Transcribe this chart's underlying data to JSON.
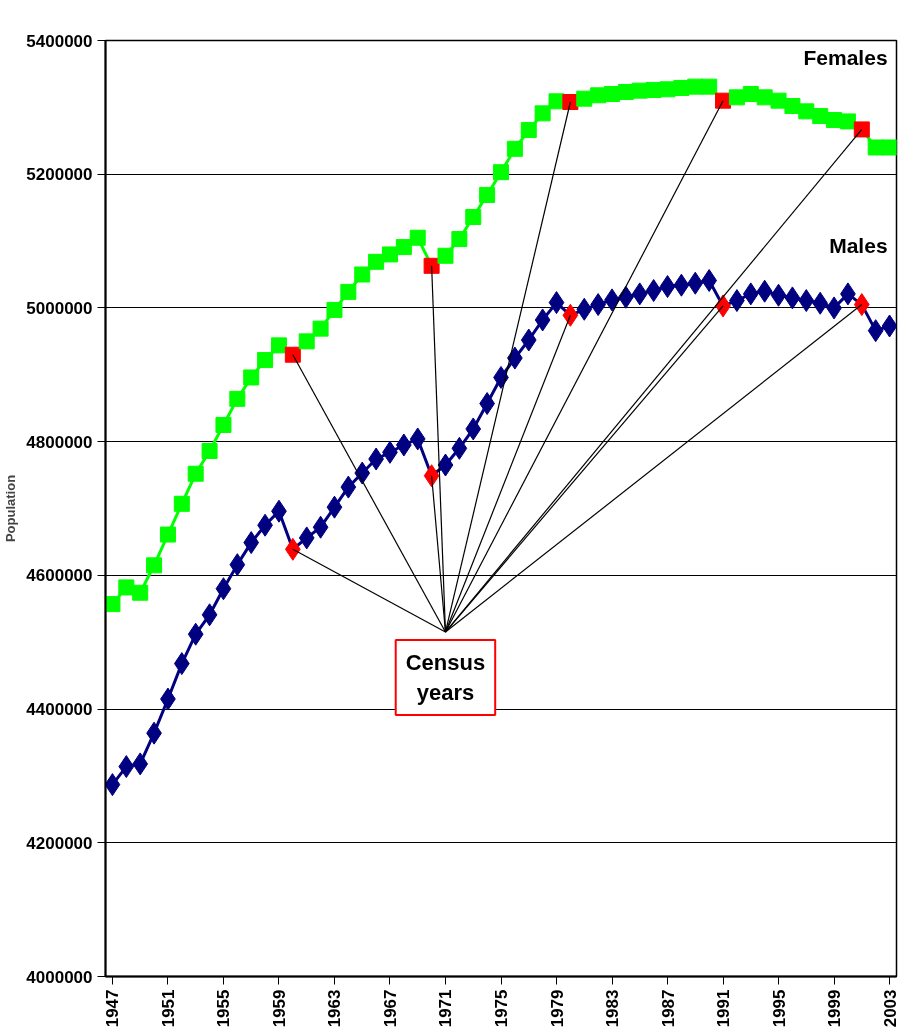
{
  "chart_data": {
    "type": "line",
    "ylabel": "Population",
    "x": [
      1947,
      1948,
      1949,
      1950,
      1951,
      1952,
      1953,
      1954,
      1955,
      1956,
      1957,
      1958,
      1959,
      1960,
      1961,
      1962,
      1963,
      1964,
      1965,
      1966,
      1967,
      1968,
      1969,
      1970,
      1971,
      1972,
      1973,
      1974,
      1975,
      1976,
      1977,
      1978,
      1979,
      1980,
      1981,
      1982,
      1983,
      1984,
      1985,
      1986,
      1987,
      1988,
      1989,
      1990,
      1991,
      1992,
      1993,
      1994,
      1995,
      1996,
      1997,
      1998,
      1999,
      2000,
      2001,
      2002,
      2003
    ],
    "series": [
      {
        "name": "Females",
        "color": "#00ff00",
        "marker": "square",
        "values": [
          4557000,
          4582000,
          4574000,
          4615000,
          4661000,
          4707000,
          4752000,
          4786000,
          4825000,
          4864000,
          4896000,
          4922000,
          4944000,
          4930000,
          4950000,
          4969000,
          4997000,
          5024000,
          5050000,
          5069000,
          5080000,
          5091000,
          5105000,
          5063000,
          5078000,
          5103000,
          5136000,
          5169000,
          5203000,
          5238000,
          5266000,
          5291000,
          5309000,
          5308000,
          5313000,
          5318000,
          5320000,
          5323000,
          5325000,
          5326000,
          5327000,
          5329000,
          5331000,
          5331000,
          5310000,
          5315000,
          5320000,
          5315000,
          5310000,
          5302000,
          5294000,
          5287000,
          5281000,
          5279000,
          5267000,
          5240000,
          5240000
        ],
        "colors": [
          "#00ff00",
          "#00ff00",
          "#00ff00",
          "#00ff00",
          "#00ff00",
          "#00ff00",
          "#00ff00",
          "#00ff00",
          "#00ff00",
          "#00ff00",
          "#00ff00",
          "#00ff00",
          "#00ff00",
          "#ff0000",
          "#00ff00",
          "#00ff00",
          "#00ff00",
          "#00ff00",
          "#00ff00",
          "#00ff00",
          "#00ff00",
          "#00ff00",
          "#00ff00",
          "#ff0000",
          "#00ff00",
          "#00ff00",
          "#00ff00",
          "#00ff00",
          "#00ff00",
          "#00ff00",
          "#00ff00",
          "#00ff00",
          "#00ff00",
          "#ff0000",
          "#00ff00",
          "#00ff00",
          "#00ff00",
          "#00ff00",
          "#00ff00",
          "#00ff00",
          "#00ff00",
          "#00ff00",
          "#00ff00",
          "#00ff00",
          "#ff0000",
          "#00ff00",
          "#00ff00",
          "#00ff00",
          "#00ff00",
          "#00ff00",
          "#00ff00",
          "#00ff00",
          "#00ff00",
          "#00ff00",
          "#ff0000",
          "#00ff00",
          "#00ff00"
        ]
      },
      {
        "name": "Males",
        "color": "#000080",
        "marker": "diamond",
        "values": [
          4287000,
          4314000,
          4318000,
          4364000,
          4415000,
          4468000,
          4512000,
          4541000,
          4580000,
          4616000,
          4649000,
          4675000,
          4696000,
          4639000,
          4656000,
          4672000,
          4702000,
          4732000,
          4753000,
          4774000,
          4784000,
          4795000,
          4804000,
          4749000,
          4765000,
          4790000,
          4819000,
          4857000,
          4896000,
          4925000,
          4952000,
          4982000,
          5008000,
          4989000,
          4998000,
          5005000,
          5012000,
          5016000,
          5021000,
          5026000,
          5032000,
          5034000,
          5037000,
          5041000,
          5003000,
          5011000,
          5021000,
          5025000,
          5019000,
          5015000,
          5011000,
          5007000,
          5000000,
          5021000,
          5005000,
          4966000,
          4973000
        ],
        "colors": [
          "#000080",
          "#000080",
          "#000080",
          "#000080",
          "#000080",
          "#000080",
          "#000080",
          "#000080",
          "#000080",
          "#000080",
          "#000080",
          "#000080",
          "#000080",
          "#ff0000",
          "#000080",
          "#000080",
          "#000080",
          "#000080",
          "#000080",
          "#000080",
          "#000080",
          "#000080",
          "#000080",
          "#ff0000",
          "#000080",
          "#000080",
          "#000080",
          "#000080",
          "#000080",
          "#000080",
          "#000080",
          "#000080",
          "#000080",
          "#ff0000",
          "#000080",
          "#000080",
          "#000080",
          "#000080",
          "#000080",
          "#000080",
          "#000080",
          "#000080",
          "#000080",
          "#000080",
          "#ff0000",
          "#000080",
          "#000080",
          "#000080",
          "#000080",
          "#000080",
          "#000080",
          "#000080",
          "#000080",
          "#000080",
          "#ff0000",
          "#000080",
          "#000080"
        ]
      }
    ],
    "annotations": [
      {
        "text": "Census years",
        "x": 1970,
        "y": 4749000
      }
    ],
    "xlim": [
      1946.5,
      2003.5
    ],
    "xticks": [
      1947,
      1951,
      1955,
      1959,
      1963,
      1967,
      1971,
      1975,
      1979,
      1983,
      1987,
      1991,
      1995,
      1999,
      2003
    ],
    "ylim": [
      4000000,
      5400000
    ],
    "yticks": [
      4000000,
      4200000,
      4400000,
      4600000,
      4800000,
      5000000,
      5200000,
      5400000
    ],
    "grid": "y",
    "legend": false,
    "line_style": "solid"
  }
}
